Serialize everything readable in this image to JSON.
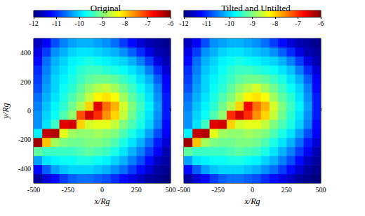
{
  "chart_data": [
    {
      "type": "heatmap",
      "title": "Original",
      "xlabel": "x/Rg",
      "ylabel": "y/Rg",
      "xlim": [
        -500,
        500
      ],
      "ylim": [
        -500,
        500
      ],
      "xticks": [
        -500,
        -250,
        0,
        250,
        500
      ],
      "yticks": [
        -400,
        -200,
        0,
        200,
        400
      ],
      "x": [
        -468.75,
        -406.25,
        -343.75,
        -281.25,
        -218.75,
        -156.25,
        -93.75,
        -31.25,
        31.25,
        93.75,
        156.25,
        218.75,
        281.25,
        343.75,
        406.25,
        468.75
      ],
      "y": [
        468.75,
        406.25,
        343.75,
        281.25,
        218.75,
        156.25,
        93.75,
        31.25,
        -31.25,
        -93.75,
        -156.25,
        -218.75,
        -281.25,
        -343.75,
        -406.25,
        -468.75
      ],
      "cells": [
        [
          -11.6,
          -11.3,
          -10.8,
          -10.5,
          -10.3,
          -10.2,
          -10.2,
          -10.3,
          -10.4,
          -10.6,
          -10.9,
          -11.2,
          -11.5,
          -11.7,
          -11.8,
          -11.9
        ],
        [
          -11.4,
          -10.9,
          -10.4,
          -10.2,
          -10.0,
          -9.9,
          -9.9,
          -10.0,
          -10.1,
          -10.2,
          -10.4,
          -10.7,
          -11.0,
          -11.4,
          -11.7,
          -11.8
        ],
        [
          -11.2,
          -10.6,
          -10.2,
          -10.0,
          -9.8,
          -9.7,
          -9.6,
          -9.7,
          -9.8,
          -9.9,
          -10.0,
          -10.2,
          -10.5,
          -10.9,
          -11.4,
          -11.7
        ],
        [
          -11.0,
          -10.5,
          -10.1,
          -9.9,
          -9.7,
          -9.5,
          -9.4,
          -9.4,
          -9.5,
          -9.6,
          -9.7,
          -9.9,
          -10.1,
          -10.5,
          -11.0,
          -11.5
        ],
        [
          -10.9,
          -10.4,
          -10.0,
          -9.8,
          -9.6,
          -9.4,
          -9.2,
          -9.1,
          -9.1,
          -9.2,
          -9.4,
          -9.6,
          -9.9,
          -10.2,
          -10.7,
          -11.3
        ],
        [
          -10.8,
          -10.3,
          -10.0,
          -9.7,
          -9.5,
          -9.2,
          -8.9,
          -8.7,
          -8.6,
          -8.8,
          -9.1,
          -9.4,
          -9.7,
          -10.0,
          -10.5,
          -11.2
        ],
        [
          -10.6,
          -10.2,
          -9.9,
          -9.6,
          -9.3,
          -9.0,
          -8.6,
          -8.2,
          -8.1,
          -8.3,
          -8.8,
          -9.2,
          -9.5,
          -9.9,
          -10.4,
          -11.1
        ],
        [
          -10.5,
          -10.1,
          -9.8,
          -9.5,
          -9.1,
          -8.7,
          -8.0,
          -6.6,
          -7.4,
          -7.8,
          -8.5,
          -9.0,
          -9.4,
          -9.8,
          -10.3,
          -11.1
        ],
        [
          -10.4,
          -10.0,
          -9.7,
          -9.3,
          -8.9,
          -7.2,
          -6.5,
          -7.0,
          -7.6,
          -8.0,
          -8.6,
          -9.1,
          -9.5,
          -9.9,
          -10.4,
          -11.1
        ],
        [
          -10.4,
          -9.9,
          -9.4,
          -6.6,
          -6.5,
          -8.0,
          -8.5,
          -8.4,
          -8.4,
          -8.6,
          -9.0,
          -9.3,
          -9.6,
          -10.0,
          -10.5,
          -11.2
        ],
        [
          -9.8,
          -6.4,
          -6.3,
          -8.4,
          -8.8,
          -8.9,
          -8.9,
          -8.8,
          -8.9,
          -9.0,
          -9.3,
          -9.6,
          -9.9,
          -10.3,
          -10.8,
          -11.3
        ],
        [
          -6.2,
          -7.9,
          -8.8,
          -9.0,
          -9.1,
          -9.1,
          -9.0,
          -9.0,
          -9.1,
          -9.3,
          -9.6,
          -9.9,
          -10.2,
          -10.6,
          -11.1,
          -11.5
        ],
        [
          -9.2,
          -9.4,
          -9.4,
          -9.4,
          -9.4,
          -9.3,
          -9.2,
          -9.3,
          -9.4,
          -9.6,
          -9.9,
          -10.2,
          -10.5,
          -10.9,
          -11.3,
          -11.7
        ],
        [
          -10.3,
          -9.9,
          -9.8,
          -9.7,
          -9.7,
          -9.6,
          -9.6,
          -9.7,
          -9.8,
          -10.0,
          -10.2,
          -10.5,
          -10.8,
          -11.2,
          -11.6,
          -11.8
        ],
        [
          -11.2,
          -10.7,
          -10.3,
          -10.1,
          -10.0,
          -10.0,
          -10.0,
          -10.1,
          -10.2,
          -10.4,
          -10.6,
          -10.9,
          -11.2,
          -11.5,
          -11.8,
          -11.9
        ],
        [
          -11.8,
          -11.5,
          -11.2,
          -10.9,
          -10.7,
          -10.6,
          -10.6,
          -10.7,
          -10.8,
          -11.0,
          -11.2,
          -11.4,
          -11.6,
          -11.8,
          -11.9,
          -12.0
        ]
      ],
      "colorbar": {
        "range": [
          -12,
          -6
        ],
        "ticks": [
          -12,
          -11,
          -10,
          -9,
          -8,
          -7,
          -6
        ]
      }
    },
    {
      "type": "heatmap",
      "title": "Tilted and Untilted",
      "xlabel": "x/Rg",
      "tick_labels": "x",
      "xlim": [
        -500,
        500
      ],
      "ylim": [
        -500,
        500
      ],
      "xticks": [
        -500,
        -250,
        0,
        250,
        500
      ],
      "yticks": [
        -400,
        -200,
        0,
        200,
        400
      ],
      "x": [
        -468.75,
        -406.25,
        -343.75,
        -281.25,
        -218.75,
        -156.25,
        -93.75,
        -31.25,
        31.25,
        93.75,
        156.25,
        218.75,
        281.25,
        343.75,
        406.25,
        468.75
      ],
      "y": [
        468.75,
        406.25,
        343.75,
        281.25,
        218.75,
        156.25,
        93.75,
        31.25,
        -31.25,
        -93.75,
        -156.25,
        -218.75,
        -281.25,
        -343.75,
        -406.25,
        -468.75
      ],
      "cells": [
        [
          -11.6,
          -11.3,
          -10.8,
          -10.4,
          -10.3,
          -10.2,
          -10.2,
          -10.3,
          -10.4,
          -10.6,
          -10.9,
          -11.2,
          -11.5,
          -11.7,
          -11.8,
          -11.9
        ],
        [
          -11.4,
          -10.9,
          -10.4,
          -10.2,
          -10.0,
          -9.9,
          -9.9,
          -10.0,
          -10.1,
          -10.2,
          -10.4,
          -10.7,
          -11.0,
          -11.4,
          -11.7,
          -11.8
        ],
        [
          -11.2,
          -10.6,
          -10.2,
          -10.0,
          -9.8,
          -9.7,
          -9.6,
          -9.7,
          -9.8,
          -9.9,
          -10.0,
          -10.2,
          -10.5,
          -10.9,
          -11.4,
          -11.7
        ],
        [
          -11.0,
          -10.5,
          -10.1,
          -9.9,
          -9.7,
          -9.5,
          -9.4,
          -9.4,
          -9.5,
          -9.6,
          -9.7,
          -9.9,
          -10.1,
          -10.5,
          -11.0,
          -11.5
        ],
        [
          -10.9,
          -10.4,
          -10.0,
          -9.8,
          -9.6,
          -9.4,
          -9.2,
          -9.1,
          -9.1,
          -9.2,
          -9.4,
          -9.6,
          -9.9,
          -10.2,
          -10.7,
          -11.3
        ],
        [
          -10.8,
          -10.3,
          -10.0,
          -9.7,
          -9.5,
          -9.2,
          -8.9,
          -8.7,
          -8.5,
          -8.8,
          -9.1,
          -9.4,
          -9.7,
          -10.0,
          -10.5,
          -11.2
        ],
        [
          -10.6,
          -10.2,
          -9.9,
          -9.6,
          -9.3,
          -9.0,
          -8.6,
          -8.2,
          -8.1,
          -8.3,
          -8.8,
          -9.2,
          -9.5,
          -9.9,
          -10.4,
          -11.1
        ],
        [
          -10.5,
          -10.1,
          -9.8,
          -9.5,
          -9.1,
          -8.7,
          -8.0,
          -6.7,
          -7.4,
          -7.8,
          -8.5,
          -9.0,
          -9.4,
          -9.8,
          -10.3,
          -11.1
        ],
        [
          -10.4,
          -10.0,
          -9.7,
          -9.3,
          -8.9,
          -7.0,
          -6.5,
          -7.0,
          -7.6,
          -8.0,
          -8.6,
          -9.1,
          -9.5,
          -9.9,
          -10.4,
          -11.1
        ],
        [
          -10.4,
          -9.9,
          -9.4,
          -6.6,
          -6.5,
          -8.0,
          -8.5,
          -8.4,
          -8.4,
          -8.6,
          -9.0,
          -9.3,
          -9.6,
          -10.0,
          -10.5,
          -11.2
        ],
        [
          -9.8,
          -6.4,
          -6.3,
          -8.4,
          -8.8,
          -8.9,
          -8.9,
          -8.8,
          -8.9,
          -9.0,
          -9.3,
          -9.6,
          -9.9,
          -10.3,
          -10.8,
          -11.3
        ],
        [
          -6.2,
          -7.9,
          -8.8,
          -9.0,
          -9.1,
          -9.1,
          -9.0,
          -9.0,
          -9.1,
          -9.3,
          -9.6,
          -9.9,
          -10.2,
          -10.6,
          -11.1,
          -11.5
        ],
        [
          -9.2,
          -9.4,
          -9.4,
          -9.4,
          -9.4,
          -9.3,
          -9.2,
          -9.3,
          -9.4,
          -9.6,
          -9.9,
          -10.2,
          -10.5,
          -10.9,
          -11.3,
          -11.7
        ],
        [
          -10.3,
          -9.9,
          -9.8,
          -9.7,
          -9.7,
          -9.6,
          -9.6,
          -9.7,
          -9.8,
          -10.0,
          -10.2,
          -10.5,
          -10.8,
          -11.2,
          -11.6,
          -11.8
        ],
        [
          -11.2,
          -10.7,
          -10.3,
          -10.1,
          -10.0,
          -10.0,
          -10.0,
          -10.1,
          -10.2,
          -10.4,
          -10.6,
          -10.9,
          -11.2,
          -11.5,
          -11.8,
          -11.9
        ],
        [
          -11.8,
          -11.5,
          -11.2,
          -10.9,
          -10.7,
          -10.6,
          -10.6,
          -10.7,
          -10.8,
          -11.0,
          -11.2,
          -11.4,
          -11.6,
          -11.8,
          -11.9,
          -12.0
        ]
      ],
      "colorbar": {
        "range": [
          -12,
          -6
        ],
        "ticks": [
          -12,
          -11,
          -10,
          -9,
          -8,
          -7,
          -6
        ]
      }
    }
  ]
}
